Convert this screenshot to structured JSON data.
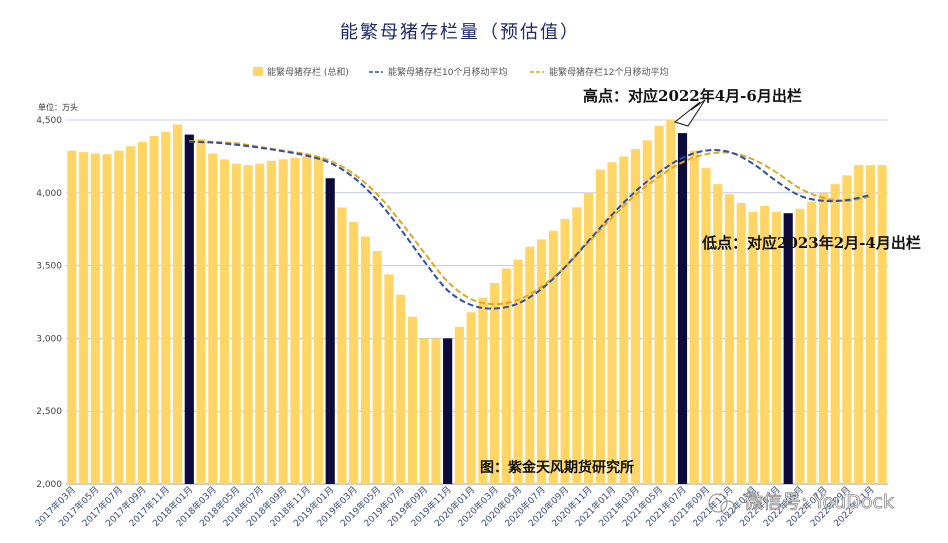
{
  "chart_data": {
    "type": "bar",
    "title": "能繁母猪存栏量（预估值）",
    "unit_label": "单位：万头",
    "ylim": [
      2000,
      4500
    ],
    "yticks": [
      "2,000",
      "2,500",
      "3,000",
      "3,500",
      "4,000",
      "4,500"
    ],
    "grid": true,
    "legend_position": "top",
    "colors": {
      "bar": "#FFD666",
      "highlight": "#0D0A3C",
      "ma10": "#2F4FA8",
      "ma12": "#E0A91C",
      "title": "#1f2a6b"
    },
    "series": [
      {
        "name": "能繁母猪存栏 (总和)",
        "type": "bar"
      },
      {
        "name": "能繁母猪存栏10个月移动平均",
        "type": "line"
      },
      {
        "name": "能繁母猪存栏12个月移动平均",
        "type": "line"
      }
    ],
    "categories": [
      "2017年03月",
      "2017年04月",
      "2017年05月",
      "2017年06月",
      "2017年07月",
      "2017年08月",
      "2017年09月",
      "2017年10月",
      "2017年11月",
      "2017年12月",
      "2018年01月",
      "2018年02月",
      "2018年03月",
      "2018年04月",
      "2018年05月",
      "2018年06月",
      "2018年07月",
      "2018年08月",
      "2018年09月",
      "2018年10月",
      "2018年11月",
      "2018年12月",
      "2019年01月",
      "2019年02月",
      "2019年03月",
      "2019年04月",
      "2019年05月",
      "2019年06月",
      "2019年07月",
      "2019年08月",
      "2019年09月",
      "2019年10月",
      "2019年11月",
      "2019年12月",
      "2020年01月",
      "2020年02月",
      "2020年03月",
      "2020年04月",
      "2020年05月",
      "2020年06月",
      "2020年07月",
      "2020年08月",
      "2020年09月",
      "2020年10月",
      "2020年11月",
      "2020年12月",
      "2021年01月",
      "2021年02月",
      "2021年03月",
      "2021年04月",
      "2021年05月",
      "2021年06月",
      "2021年07月",
      "2021年08月",
      "2021年09月",
      "2021年10月",
      "2021年11月",
      "2021年12月",
      "2022年01月",
      "2022年02月",
      "2022年03月",
      "2022年04月",
      "2022年05月",
      "2022年06月",
      "2022年07月",
      "2022年08月",
      "2022年09月",
      "2022年10月",
      "2022年11月",
      "2022年12月"
    ],
    "x_tick_labels": [
      "2017年03月",
      "2017年05月",
      "2017年07月",
      "2017年09月",
      "2017年11月",
      "2018年01月",
      "2018年03月",
      "2018年05月",
      "2018年07月",
      "2018年09月",
      "2018年11月",
      "2019年01月",
      "2019年03月",
      "2019年05月",
      "2019年07月",
      "2019年09月",
      "2019年11月",
      "2020年01月",
      "2020年03月",
      "2020年05月",
      "2020年07月",
      "2020年09月",
      "2020年11月",
      "2021年01月",
      "2021年03月",
      "2021年05月",
      "2021年07月",
      "2021年09月",
      "2021年11月",
      "2022年01月",
      "2022年03月",
      "2022年05月",
      "2022年07月",
      "2022年09月",
      "2022年11月"
    ],
    "values": [
      4290,
      4280,
      4270,
      4265,
      4290,
      4320,
      4350,
      4390,
      4420,
      4470,
      4400,
      4370,
      4270,
      4230,
      4200,
      4190,
      4200,
      4220,
      4230,
      4240,
      4250,
      4240,
      4100,
      3900,
      3800,
      3700,
      3600,
      3440,
      3300,
      3150,
      3000,
      3000,
      3000,
      3080,
      3180,
      3280,
      3380,
      3480,
      3540,
      3630,
      3680,
      3740,
      3820,
      3900,
      4000,
      4160,
      4210,
      4250,
      4300,
      4360,
      4460,
      4500,
      4410,
      4290,
      4170,
      4060,
      3990,
      3930,
      3870,
      3910,
      3870,
      3860,
      3890,
      3940,
      4000,
      4060,
      4120,
      4190,
      4190,
      4190
    ],
    "highlight_indices": [
      10,
      22,
      32,
      52,
      61
    ],
    "ma10": [
      [
        10,
        4350
      ],
      [
        12,
        4345
      ],
      [
        14,
        4330
      ],
      [
        16,
        4310
      ],
      [
        18,
        4285
      ],
      [
        20,
        4255
      ],
      [
        22,
        4205
      ],
      [
        24,
        4105
      ],
      [
        26,
        3950
      ],
      [
        28,
        3750
      ],
      [
        30,
        3530
      ],
      [
        32,
        3330
      ],
      [
        34,
        3230
      ],
      [
        36,
        3205
      ],
      [
        38,
        3240
      ],
      [
        40,
        3340
      ],
      [
        42,
        3490
      ],
      [
        44,
        3670
      ],
      [
        46,
        3850
      ],
      [
        48,
        4010
      ],
      [
        50,
        4140
      ],
      [
        52,
        4240
      ],
      [
        54,
        4290
      ],
      [
        56,
        4280
      ],
      [
        58,
        4200
      ],
      [
        60,
        4080
      ],
      [
        62,
        3980
      ],
      [
        64,
        3945
      ],
      [
        66,
        3950
      ],
      [
        68,
        3985
      ]
    ],
    "ma12": [
      [
        10,
        4355
      ],
      [
        12,
        4350
      ],
      [
        14,
        4340
      ],
      [
        16,
        4315
      ],
      [
        18,
        4290
      ],
      [
        20,
        4265
      ],
      [
        22,
        4220
      ],
      [
        24,
        4130
      ],
      [
        26,
        3990
      ],
      [
        28,
        3800
      ],
      [
        30,
        3590
      ],
      [
        32,
        3390
      ],
      [
        34,
        3270
      ],
      [
        36,
        3235
      ],
      [
        38,
        3265
      ],
      [
        40,
        3355
      ],
      [
        42,
        3490
      ],
      [
        44,
        3660
      ],
      [
        46,
        3830
      ],
      [
        48,
        3985
      ],
      [
        50,
        4110
      ],
      [
        52,
        4210
      ],
      [
        54,
        4265
      ],
      [
        56,
        4275
      ],
      [
        58,
        4230
      ],
      [
        60,
        4140
      ],
      [
        62,
        4030
      ],
      [
        64,
        3965
      ],
      [
        66,
        3945
      ],
      [
        68,
        3975
      ]
    ],
    "annotations": [
      {
        "text": "高点：对应2022年4月-6月出栏"
      },
      {
        "text": "低点：对应2023年2月-4月出栏"
      }
    ],
    "source_text": "图：紫金天风期货研究所",
    "watermark_text": "微信号: YouDock"
  }
}
